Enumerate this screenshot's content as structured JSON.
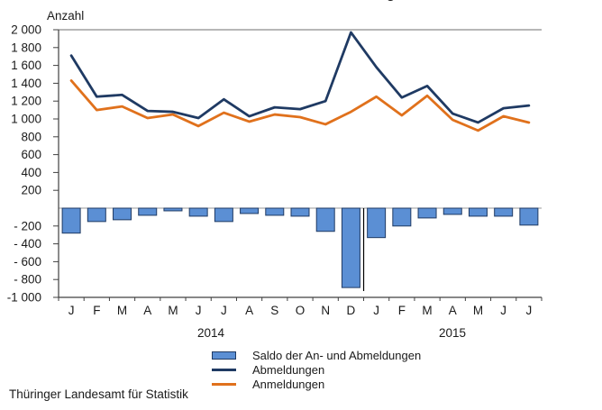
{
  "page": {
    "title_fragment": "g",
    "footer": "Thüringer Landesamt für Statistik"
  },
  "chart_data": {
    "type": "bar+line combo",
    "y_axis_title": "Anzahl",
    "categories": [
      "J",
      "F",
      "M",
      "A",
      "M",
      "J",
      "J",
      "A",
      "S",
      "O",
      "N",
      "D",
      "J",
      "F",
      "M",
      "A",
      "M",
      "J",
      "J"
    ],
    "year_groups": [
      {
        "label": "2014",
        "months": 12
      },
      {
        "label": "2015",
        "months": 7
      }
    ],
    "ylim": [
      -1000,
      2000
    ],
    "grid": false,
    "legend_position": "bottom",
    "y_ticks": [
      {
        "value": 2000,
        "label": "2 000"
      },
      {
        "value": 1800,
        "label": "1 800"
      },
      {
        "value": 1600,
        "label": "1 600"
      },
      {
        "value": 1400,
        "label": "1 400"
      },
      {
        "value": 1200,
        "label": "1 200"
      },
      {
        "value": 1000,
        "label": "1 000"
      },
      {
        "value": 800,
        "label": "800"
      },
      {
        "value": 600,
        "label": "600"
      },
      {
        "value": 400,
        "label": "400"
      },
      {
        "value": 200,
        "label": "200"
      },
      {
        "value": -200,
        "label": "- 200"
      },
      {
        "value": -400,
        "label": "- 400"
      },
      {
        "value": -600,
        "label": "- 600"
      },
      {
        "value": -800,
        "label": "- 800"
      },
      {
        "value": -1000,
        "label": "-1 000"
      }
    ],
    "series": [
      {
        "name": "Saldo der An- und Abmeldungen",
        "type": "bar",
        "color": "#5b8fd4",
        "border_color": "#1f3a63",
        "values": [
          -280,
          -150,
          -130,
          -80,
          -30,
          -90,
          -150,
          -60,
          -80,
          -90,
          -260,
          -890,
          -330,
          -200,
          -110,
          -70,
          -90,
          -90,
          -190
        ]
      },
      {
        "name": "Abmeldungen",
        "type": "line",
        "color": "#1f3a63",
        "values": [
          1710,
          1250,
          1270,
          1090,
          1080,
          1010,
          1220,
          1030,
          1130,
          1110,
          1200,
          1970,
          1580,
          1240,
          1370,
          1060,
          960,
          1120,
          1150
        ]
      },
      {
        "name": "Anmeldungen",
        "type": "line",
        "color": "#e0711c",
        "values": [
          1430,
          1100,
          1140,
          1010,
          1050,
          920,
          1070,
          970,
          1050,
          1020,
          940,
          1080,
          1250,
          1040,
          1260,
          990,
          870,
          1030,
          960
        ]
      }
    ]
  }
}
